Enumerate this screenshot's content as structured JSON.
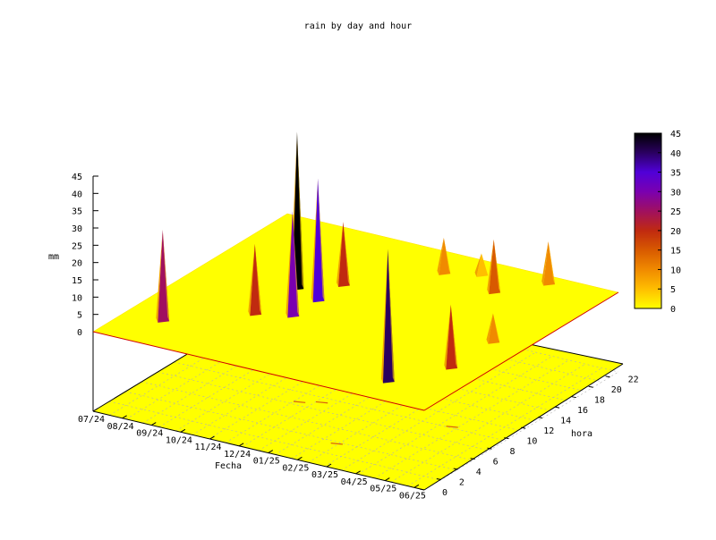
{
  "chart_data": {
    "type": "surface3d",
    "title": "rain by day and hour",
    "xlabel": "Fecha",
    "ylabel": "hora",
    "zlabel": "mm",
    "x_ticks": [
      "07/24",
      "08/24",
      "09/24",
      "10/24",
      "11/24",
      "12/24",
      "01/25",
      "02/25",
      "03/25",
      "04/25",
      "05/25",
      "06/25"
    ],
    "y_ticks": [
      "0",
      "2",
      "4",
      "6",
      "8",
      "10",
      "12",
      "14",
      "16",
      "18",
      "20",
      "22"
    ],
    "z_ticks": [
      "0",
      "5",
      "10",
      "15",
      "20",
      "25",
      "30",
      "35",
      "40",
      "45"
    ],
    "zlim": [
      0,
      45
    ],
    "ylim": [
      0,
      23
    ],
    "colorbar": {
      "ticks": [
        "0",
        "5",
        "10",
        "15",
        "20",
        "25",
        "30",
        "35",
        "40",
        "45"
      ],
      "range": [
        0,
        45
      ],
      "colors": [
        "#ffff00",
        "#ffbe00",
        "#f08a00",
        "#d85a00",
        "#c02a10",
        "#a01060",
        "#7a00b0",
        "#5000d8",
        "#2a0060",
        "#000000"
      ]
    },
    "peaks": [
      {
        "x": "08/24",
        "hour": 4,
        "mm": 26
      },
      {
        "x": "10/24",
        "hour": 13,
        "mm": 45
      },
      {
        "x": "10/24",
        "hour": 8,
        "mm": 20
      },
      {
        "x": "11/24",
        "hour": 12,
        "mm": 35
      },
      {
        "x": "11/24",
        "hour": 9,
        "mm": 30
      },
      {
        "x": "11/24",
        "hour": 15,
        "mm": 18
      },
      {
        "x": "01/25",
        "hour": 20,
        "mm": 10
      },
      {
        "x": "02/25",
        "hour": 21,
        "mm": 6
      },
      {
        "x": "03/25",
        "hour": 19,
        "mm": 15
      },
      {
        "x": "04/25",
        "hour": 22,
        "mm": 12
      },
      {
        "x": "05/25",
        "hour": 12,
        "mm": 8
      },
      {
        "x": "04/25",
        "hour": 3,
        "mm": 38
      },
      {
        "x": "05/25",
        "hour": 7,
        "mm": 18
      }
    ]
  }
}
